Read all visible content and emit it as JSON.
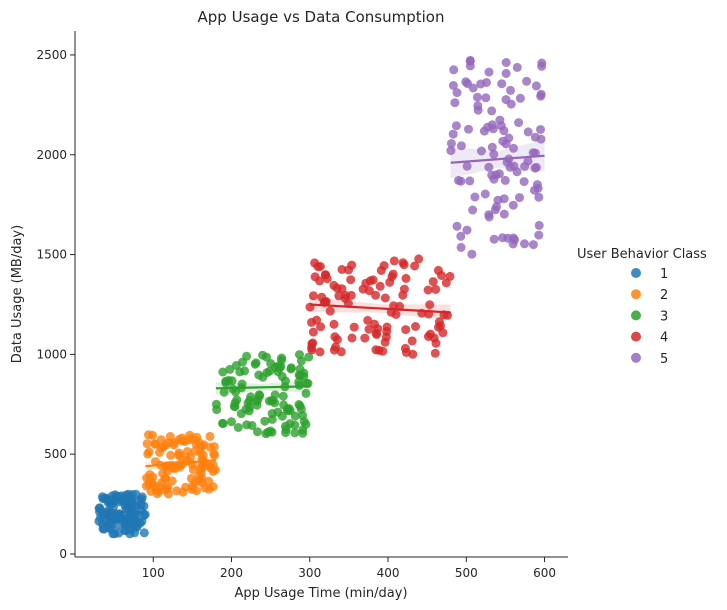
{
  "chart_data": {
    "type": "scatter",
    "title": "App Usage vs Data Consumption",
    "xlabel": "App Usage Time (min/day)",
    "ylabel": "Data Usage (MB/day)",
    "xlim": [
      0,
      630
    ],
    "ylim": [
      -15,
      2620
    ],
    "xticks": [
      100,
      200,
      300,
      400,
      500,
      600
    ],
    "yticks": [
      0,
      500,
      1000,
      1500,
      2000,
      2500
    ],
    "grid": false,
    "legend": {
      "title": "User Behavior Class",
      "placement": "right"
    },
    "series": [
      {
        "name": "1",
        "color": "#1f77b4",
        "x_range": [
          30,
          90
        ],
        "y_range": [
          100,
          300
        ],
        "fit": [
          [
            30,
            205
          ],
          [
            90,
            212
          ]
        ],
        "n": 120
      },
      {
        "name": "2",
        "color": "#ff7f0e",
        "x_range": [
          90,
          180
        ],
        "y_range": [
          300,
          600
        ],
        "fit": [
          [
            90,
            440
          ],
          [
            180,
            470
          ]
        ],
        "n": 110
      },
      {
        "name": "3",
        "color": "#2ca02c",
        "x_range": [
          180,
          300
        ],
        "y_range": [
          600,
          1000
        ],
        "fit": [
          [
            180,
            830
          ],
          [
            300,
            840
          ]
        ],
        "n": 110
      },
      {
        "name": "4",
        "color": "#d62728",
        "x_range": [
          300,
          480
        ],
        "y_range": [
          1000,
          1500
        ],
        "fit": [
          [
            300,
            1250
          ],
          [
            480,
            1210
          ]
        ],
        "n": 110
      },
      {
        "name": "5",
        "color": "#9467bd",
        "x_range": [
          480,
          600
        ],
        "y_range": [
          1500,
          2500
        ],
        "fit": [
          [
            480,
            1960
          ],
          [
            600,
            1995
          ]
        ],
        "n": 110
      }
    ]
  }
}
